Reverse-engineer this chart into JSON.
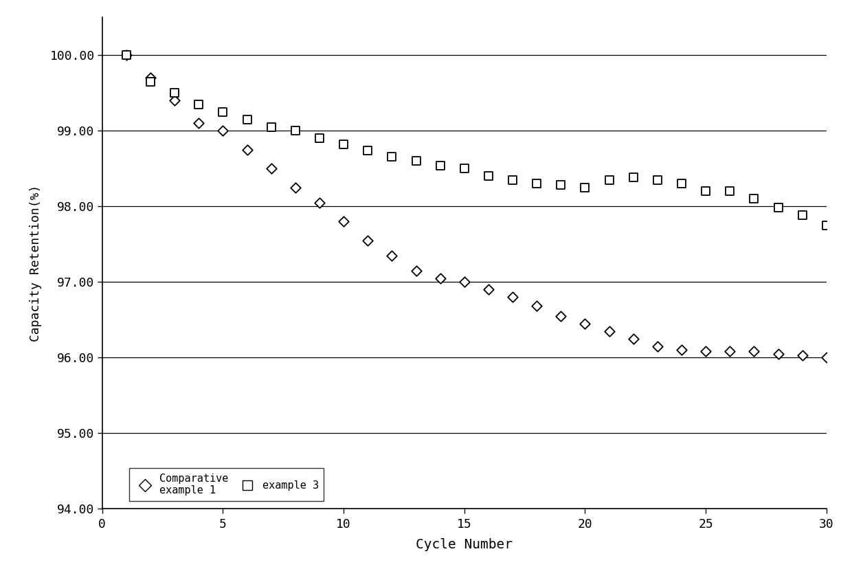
{
  "comparative_example1_x": [
    1,
    2,
    3,
    4,
    5,
    6,
    7,
    8,
    9,
    10,
    11,
    12,
    13,
    14,
    15,
    16,
    17,
    18,
    19,
    20,
    21,
    22,
    23,
    24,
    25,
    26,
    27,
    28,
    29,
    30
  ],
  "comparative_example1_y": [
    100.0,
    99.7,
    99.4,
    99.1,
    99.0,
    98.75,
    98.5,
    98.25,
    98.05,
    97.8,
    97.55,
    97.35,
    97.15,
    97.05,
    97.0,
    96.9,
    96.8,
    96.68,
    96.55,
    96.45,
    96.35,
    96.25,
    96.15,
    96.1,
    96.08,
    96.08,
    96.08,
    96.05,
    96.03,
    96.0
  ],
  "example3_x": [
    1,
    2,
    3,
    4,
    5,
    6,
    7,
    8,
    9,
    10,
    11,
    12,
    13,
    14,
    15,
    16,
    17,
    18,
    19,
    20,
    21,
    22,
    23,
    24,
    25,
    26,
    27,
    28,
    29,
    30
  ],
  "example3_y": [
    100.0,
    99.65,
    99.5,
    99.35,
    99.25,
    99.15,
    99.05,
    99.0,
    98.9,
    98.82,
    98.74,
    98.66,
    98.6,
    98.54,
    98.5,
    98.4,
    98.35,
    98.3,
    98.28,
    98.25,
    98.35,
    98.38,
    98.35,
    98.3,
    98.2,
    98.2,
    98.1,
    97.98,
    97.88,
    97.75
  ],
  "xlabel": "Cycle Number",
  "ylabel": "Capacity Retention(%)",
  "xlim": [
    0,
    30
  ],
  "ylim": [
    94.0,
    100.5
  ],
  "yticks": [
    94.0,
    95.0,
    96.0,
    97.0,
    98.0,
    99.0,
    100.0
  ],
  "xticks": [
    0,
    5,
    10,
    15,
    20,
    25,
    30
  ],
  "background_color": "#ffffff"
}
